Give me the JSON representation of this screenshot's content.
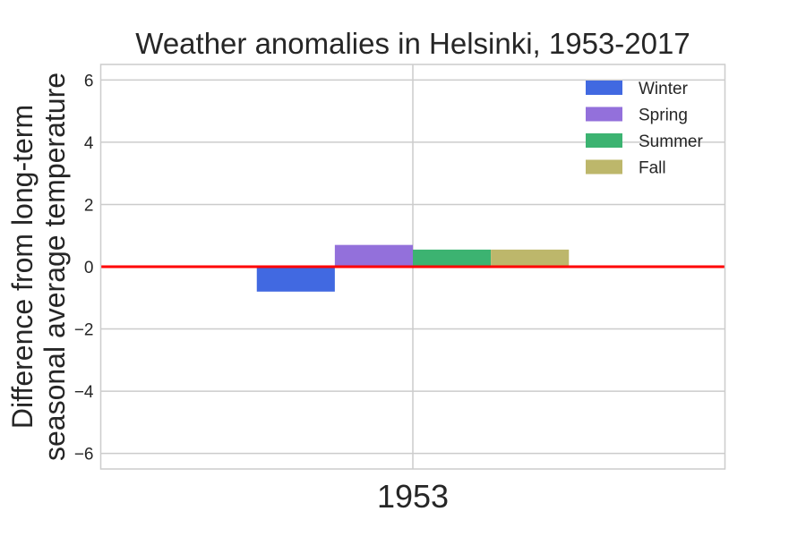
{
  "chart_data": {
    "type": "bar",
    "title": "Weather anomalies in Helsinki, 1953-2017",
    "xlabel": "",
    "ylabel_lines": [
      "Difference from long-term",
      "seasonal average temperature"
    ],
    "categories": [
      "1953"
    ],
    "series": [
      {
        "name": "Winter",
        "values": [
          -0.8
        ],
        "color": "#4169e1"
      },
      {
        "name": "Spring",
        "values": [
          0.7
        ],
        "color": "#9370db"
      },
      {
        "name": "Summer",
        "values": [
          0.55
        ],
        "color": "#3cb371"
      },
      {
        "name": "Fall",
        "values": [
          0.55
        ],
        "color": "#bdb76b"
      }
    ],
    "ylim": [
      -6.5,
      6.5
    ],
    "yticks": [
      -6,
      -4,
      -2,
      0,
      2,
      4,
      6
    ],
    "ytick_labels": [
      "−6",
      "−4",
      "−2",
      "0",
      "2",
      "4",
      "6"
    ],
    "reference_line": {
      "y": 0,
      "color": "#ff0000"
    },
    "grid": true,
    "legend_position": "top-right",
    "colors": {
      "grid": "#cccccc",
      "background": "#ffffff"
    }
  }
}
